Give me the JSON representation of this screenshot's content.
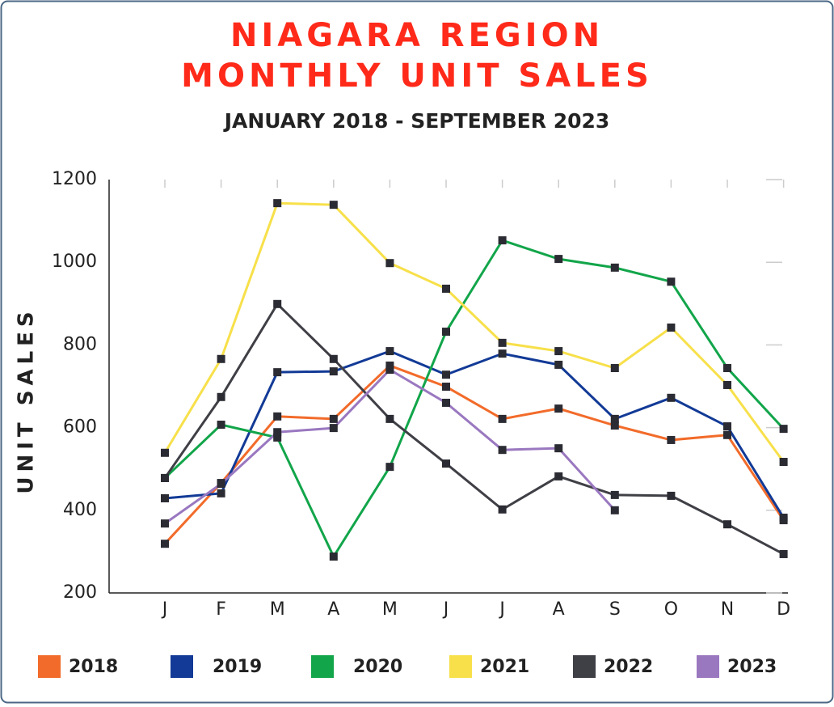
{
  "chart_data": {
    "type": "line",
    "title": "NIAGARA REGION",
    "title_line2": "MONTHLY UNIT SALES",
    "subtitle": "JANUARY 2018 - SEPTEMBER 2023",
    "y_label": "UNIT SALES",
    "categories": [
      "J",
      "F",
      "M",
      "A",
      "M",
      "J",
      "J",
      "A",
      "S",
      "O",
      "N",
      "D"
    ],
    "ylim": [
      200,
      1200
    ],
    "yticks": [
      200,
      400,
      600,
      800,
      1000,
      1200
    ],
    "series": [
      {
        "name": "2018",
        "color": "#f26b2a",
        "values": [
          319,
          466,
          627,
          621,
          750,
          699,
          621,
          646,
          605,
          570,
          582,
          376
        ]
      },
      {
        "name": "2019",
        "color": "#123a96",
        "values": [
          429,
          441,
          734,
          736,
          785,
          728,
          779,
          752,
          621,
          672,
          603,
          382
        ]
      },
      {
        "name": "2020",
        "color": "#12a54a",
        "values": [
          478,
          607,
          576,
          288,
          505,
          832,
          1053,
          1008,
          987,
          953,
          744,
          597
        ]
      },
      {
        "name": "2021",
        "color": "#f7e04a",
        "values": [
          539,
          766,
          1143,
          1139,
          998,
          936,
          805,
          785,
          744,
          842,
          703,
          517
        ]
      },
      {
        "name": "2022",
        "color": "#3f3f46",
        "values": [
          478,
          674,
          899,
          766,
          621,
          513,
          402,
          482,
          437,
          435,
          366,
          294
        ]
      },
      {
        "name": "2023",
        "color": "#9a78c0",
        "values": [
          368,
          464,
          589,
          599,
          740,
          660,
          546,
          550,
          400,
          null,
          null,
          null
        ]
      }
    ]
  }
}
